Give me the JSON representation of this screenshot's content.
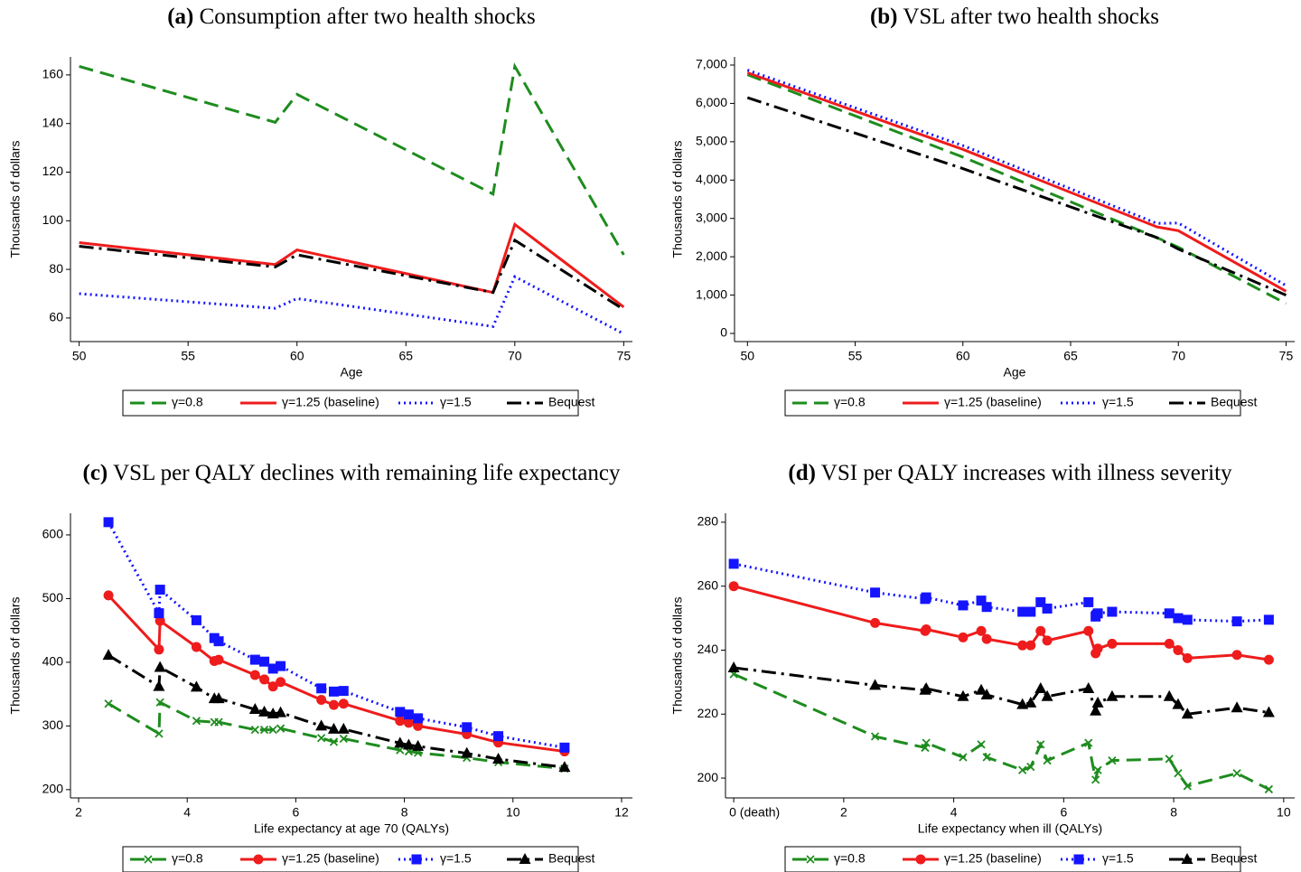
{
  "chart_data": [
    {
      "type": "line",
      "label": "(a)",
      "title": "Consumption after two health shocks",
      "x_label": "Age",
      "y_label": "Thousands of dollars",
      "x": [
        50,
        59,
        60,
        69,
        70,
        75
      ],
      "xlim": [
        49.6,
        75.4
      ],
      "xticks": [
        50,
        55,
        60,
        65,
        70,
        75
      ],
      "ylim": [
        50.3,
        167.4
      ],
      "yticks": [
        60,
        80,
        100,
        120,
        140,
        160
      ],
      "markers": false,
      "series": [
        {
          "name": "γ=0.8",
          "color": "#1e8c1e",
          "values": [
            163.5,
            140.5,
            152,
            111,
            163.5,
            86
          ]
        },
        {
          "name": "γ=1.25 (baseline)",
          "color": "#ee1c1c",
          "values": [
            91,
            82,
            88,
            70.5,
            98.5,
            64.5
          ]
        },
        {
          "name": "γ=1.5",
          "color": "#1414ff",
          "values": [
            70,
            64,
            68,
            56.5,
            77,
            53.5
          ]
        },
        {
          "name": "Bequest",
          "color": "#000000",
          "values": [
            89.5,
            81,
            86,
            70.5,
            92,
            63.5
          ]
        }
      ]
    },
    {
      "type": "line",
      "label": "(b)",
      "title": "VSL after two health shocks",
      "x_label": "Age",
      "y_label": "Thousands of dollars",
      "x": [
        50,
        60,
        69,
        70,
        75
      ],
      "xlim": [
        49.4,
        75.4
      ],
      "xticks": [
        50,
        55,
        60,
        65,
        70,
        75
      ],
      "ylim": [
        -212,
        7212
      ],
      "yticks": [
        0,
        {
          "value": 1000,
          "label": "1,000"
        },
        {
          "value": 2000,
          "label": "2,000"
        },
        {
          "value": 3000,
          "label": "3,000"
        },
        {
          "value": 4000,
          "label": "4,000"
        },
        {
          "value": 5000,
          "label": "5,000"
        },
        {
          "value": 6000,
          "label": "6,000"
        },
        {
          "value": 7000,
          "label": "7,000"
        }
      ],
      "markers": false,
      "series": [
        {
          "name": "γ=0.8",
          "color": "#1e8c1e",
          "values": [
            6750,
            4600,
            2500,
            2250,
            780
          ]
        },
        {
          "name": "γ=1.25 (baseline)",
          "color": "#ee1c1c",
          "values": [
            6800,
            4800,
            2780,
            2680,
            1100
          ]
        },
        {
          "name": "γ=1.5",
          "color": "#1414ff",
          "values": [
            6870,
            4900,
            2870,
            2880,
            1250
          ]
        },
        {
          "name": "Bequest",
          "color": "#000000",
          "values": [
            6150,
            4300,
            2500,
            2200,
            1000
          ]
        }
      ]
    },
    {
      "type": "line",
      "label": "(c)",
      "title": "VSL per QALY declines with remaining life expectancy",
      "x_label": "Life expectancy at age 70 (QALYs)",
      "y_label": "Thousands of dollars",
      "x": [
        2.55,
        3.48,
        3.5,
        4.17,
        4.5,
        4.58,
        5.25,
        5.42,
        5.58,
        5.72,
        6.47,
        6.7,
        6.88,
        7.92,
        8.08,
        8.25,
        9.15,
        9.73,
        10.95
      ],
      "xlim": [
        1.85,
        12.2
      ],
      "xticks": [
        2,
        4,
        6,
        8,
        10,
        12
      ],
      "ylim": [
        187,
        634
      ],
      "yticks": [
        200,
        300,
        400,
        500,
        600
      ],
      "markers": true,
      "series": [
        {
          "name": "γ=0.8",
          "color": "#1e8c1e",
          "values": [
            335,
            288,
            337,
            308,
            306,
            306,
            294,
            294,
            294,
            296,
            281,
            275,
            280,
            262,
            260,
            258,
            250,
            243,
            233
          ]
        },
        {
          "name": "γ=1.25 (baseline)",
          "color": "#ee1c1c",
          "values": [
            505,
            420,
            465,
            424,
            402,
            404,
            380,
            373,
            362,
            369,
            341,
            333,
            335,
            308,
            305,
            300,
            287,
            274,
            260
          ]
        },
        {
          "name": "γ=1.5",
          "color": "#1414ff",
          "values": [
            620,
            477,
            514,
            466,
            438,
            433,
            404,
            401,
            390,
            394,
            359,
            354,
            355,
            322,
            318,
            312,
            298,
            284,
            266
          ]
        },
        {
          "name": "Bequest",
          "color": "#000000",
          "values": [
            411,
            362,
            392,
            361,
            343,
            343,
            326,
            322,
            319,
            321,
            300,
            295,
            295,
            273,
            270,
            268,
            257,
            248,
            235
          ]
        }
      ]
    },
    {
      "type": "line",
      "label": "(d)",
      "title": "VSI per QALY increases with illness severity",
      "x_label": "Life expectancy when ill (QALYs)",
      "y_label": "Thousands of dollars",
      "x": [
        0,
        2.57,
        3.48,
        3.5,
        4.17,
        4.5,
        4.6,
        5.25,
        5.4,
        5.58,
        5.7,
        6.45,
        6.58,
        6.62,
        6.88,
        7.92,
        8.08,
        8.25,
        9.15,
        9.73
      ],
      "xlim": [
        -0.15,
        10.2
      ],
      "xticks": [
        {
          "value": 0,
          "label": "0 (death)"
        },
        2,
        4,
        6,
        8,
        10
      ],
      "ylim": [
        193.8,
        282.8
      ],
      "yticks": [
        200,
        220,
        240,
        260,
        280
      ],
      "markers": true,
      "series": [
        {
          "name": "γ=0.8",
          "color": "#1e8c1e",
          "values": [
            232.5,
            213,
            209.5,
            211,
            206.5,
            210.5,
            206.5,
            202.5,
            203.5,
            210.5,
            205.5,
            211,
            199.5,
            202.5,
            205.5,
            206,
            201.5,
            197.5,
            201.5,
            196.5
          ]
        },
        {
          "name": "γ=1.25 (baseline)",
          "color": "#ee1c1c",
          "values": [
            260,
            248.5,
            246,
            246.5,
            244,
            246,
            243.5,
            241.5,
            241.5,
            246,
            243,
            246,
            239,
            240.5,
            242,
            242,
            240,
            237.5,
            238.5,
            237
          ]
        },
        {
          "name": "γ=1.5",
          "color": "#1414ff",
          "values": [
            267,
            258,
            256,
            256.5,
            254,
            255.5,
            253.5,
            252,
            252,
            255,
            253,
            255,
            250.5,
            251.5,
            252,
            251.5,
            250,
            249.5,
            249,
            249.5
          ]
        },
        {
          "name": "Bequest",
          "color": "#000000",
          "values": [
            234.5,
            229,
            227.5,
            228,
            225.5,
            227.5,
            226,
            223,
            223.5,
            228,
            225.5,
            228,
            221,
            223.5,
            225.5,
            225.5,
            223,
            220,
            222,
            220.5
          ]
        }
      ]
    }
  ]
}
